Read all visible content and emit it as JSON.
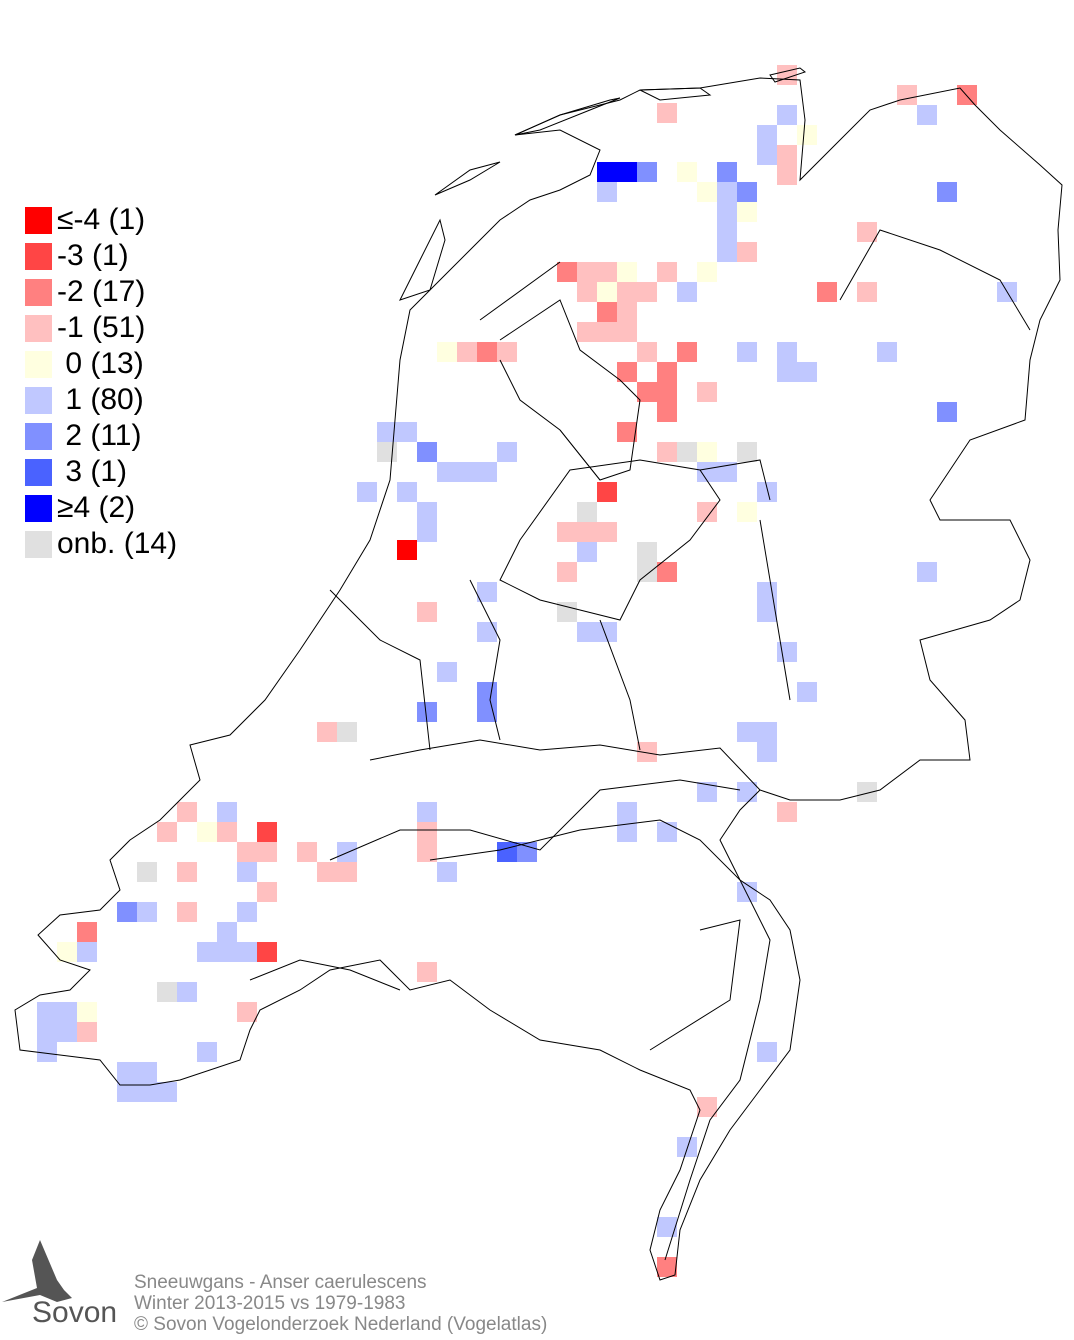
{
  "legend": [
    {
      "label": "≤-4 (1)",
      "color": "#ff0000"
    },
    {
      "label": "-3 (1)",
      "color": "#ff4545"
    },
    {
      "label": "-2 (17)",
      "color": "#ff8080"
    },
    {
      "label": "-1 (51)",
      "color": "#ffc0c0"
    },
    {
      "label": " 0 (13)",
      "color": "#ffffe0"
    },
    {
      "label": " 1 (80)",
      "color": "#c0c8ff"
    },
    {
      "label": " 2 (11)",
      "color": "#8090ff"
    },
    {
      "label": " 3 (1)",
      "color": "#4a62ff"
    },
    {
      "label": "≥4 (2)",
      "color": "#0000ff"
    },
    {
      "label": "onb. (14)",
      "color": "#e0e0e0"
    }
  ],
  "footer": {
    "title": "Sneeuwgans - Anser caerulescens",
    "period": "Winter 2013-2015 vs 1979-1983",
    "copyright": "© Sovon Vogelonderzoek Nederland (Vogelatlas)"
  },
  "logo": {
    "text": "Sovon"
  }
}
